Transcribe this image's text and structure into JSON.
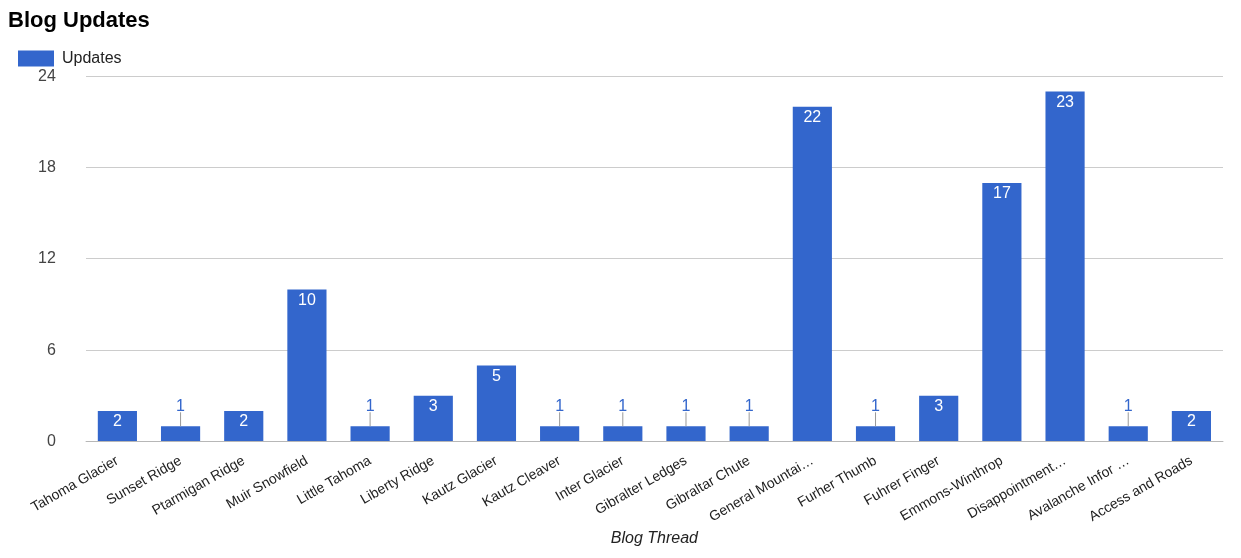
{
  "chart_data": {
    "type": "bar",
    "title": "Blog Updates",
    "xlabel": "Blog Thread",
    "categories": [
      "Tahoma Glacier",
      "Sunset Ridge",
      "Ptarmigan Ridge",
      "Muir Snowfield",
      "Little Tahoma",
      "Liberty Ridge",
      "Kautz Glacier",
      "Kautz Cleaver",
      "Inter Glacier",
      "Gibralter Ledges",
      "Gibraltar Chute",
      "General Mountai…",
      "Furher Thumb",
      "Fuhrer Finger",
      "Emmons-Winthrop",
      "Disappointment…",
      "Avalanche Infor …",
      "Access and Roads"
    ],
    "series": [
      {
        "name": "Updates",
        "color": "#3366cc",
        "values": [
          2,
          1,
          2,
          10,
          1,
          3,
          5,
          1,
          1,
          1,
          1,
          22,
          1,
          3,
          17,
          23,
          1,
          2
        ]
      }
    ],
    "ylim": [
      0,
      24
    ],
    "yticks": [
      0,
      6,
      12,
      18,
      24
    ],
    "grid": "y",
    "legend": "top left",
    "data_labels": true
  }
}
